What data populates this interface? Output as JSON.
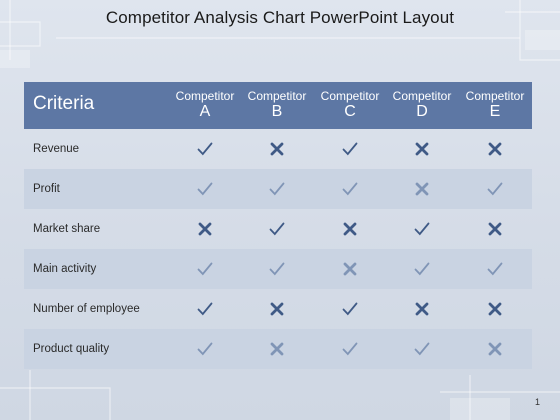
{
  "slide": {
    "title": "Competitor Analysis Chart PowerPoint Layout",
    "page_number": "1"
  },
  "table": {
    "criteria_header": "Criteria",
    "columns": [
      {
        "word": "Competitor",
        "letter": "A"
      },
      {
        "word": "Competitor",
        "letter": "B"
      },
      {
        "word": "Competitor",
        "letter": "C"
      },
      {
        "word": "Competitor",
        "letter": "D"
      },
      {
        "word": "Competitor",
        "letter": "E"
      }
    ],
    "rows": [
      {
        "label": "Revenue",
        "marks": [
          "check",
          "cross",
          "check",
          "cross",
          "cross"
        ]
      },
      {
        "label": "Profit",
        "marks": [
          "check",
          "check",
          "check",
          "cross",
          "check"
        ]
      },
      {
        "label": "Market share",
        "marks": [
          "cross",
          "check",
          "cross",
          "check",
          "cross"
        ]
      },
      {
        "label": "Main activity",
        "marks": [
          "check",
          "check",
          "cross",
          "check",
          "check"
        ]
      },
      {
        "label": "Number of employee",
        "marks": [
          "check",
          "cross",
          "check",
          "cross",
          "cross"
        ]
      },
      {
        "label": "Product quality",
        "marks": [
          "check",
          "cross",
          "check",
          "check",
          "cross"
        ]
      }
    ]
  },
  "colors": {
    "header_bg": "#5d77a4",
    "alt_row_bg": "#c9d3e2",
    "mark_dark": "#3f5a86",
    "mark_light": "#8095b6"
  }
}
